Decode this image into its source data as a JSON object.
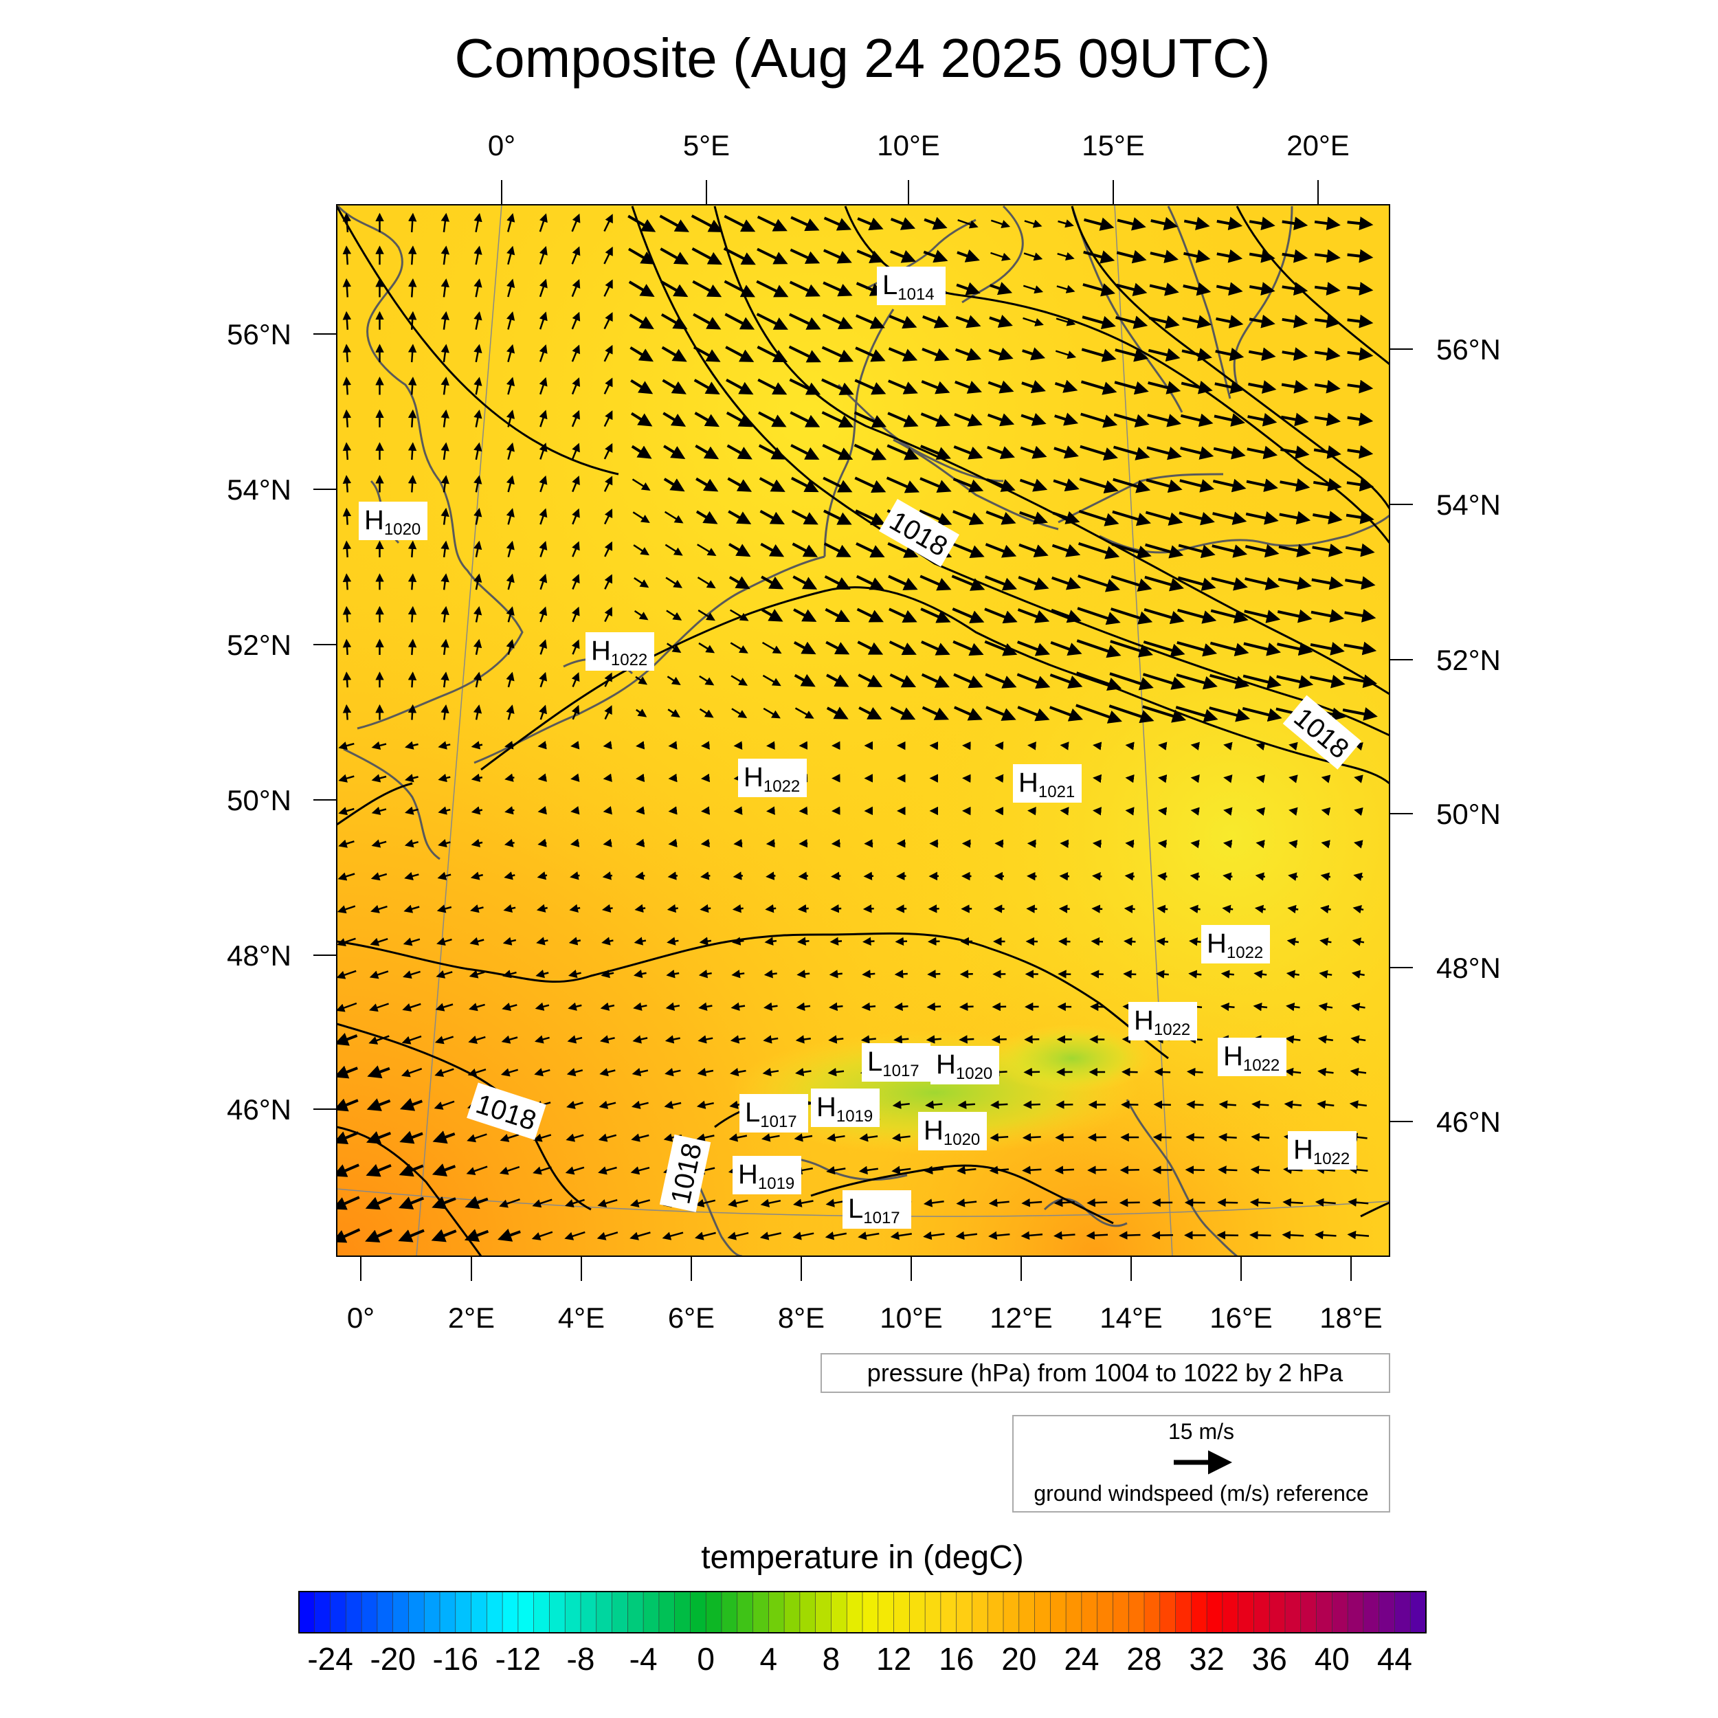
{
  "title": "Composite (Aug 24 2025 09UTC)",
  "top_lon_labels": [
    "0°",
    "5°E",
    "10°E",
    "15°E",
    "20°E"
  ],
  "bottom_lon_labels": [
    "0°",
    "2°E",
    "4°E",
    "6°E",
    "8°E",
    "10°E",
    "12°E",
    "14°E",
    "16°E",
    "18°E"
  ],
  "left_lat_labels": [
    "56°N",
    "54°N",
    "52°N",
    "50°N",
    "48°N",
    "46°N"
  ],
  "right_lat_labels": [
    "56°N",
    "54°N",
    "52°N",
    "50°N",
    "48°N",
    "46°N"
  ],
  "isobar_labels": [
    "1018",
    "1018",
    "1018",
    "1018"
  ],
  "pressure_centers": [
    {
      "letter": "L",
      "value": "1014"
    },
    {
      "letter": "H",
      "value": "1020"
    },
    {
      "letter": "H",
      "value": "1022"
    },
    {
      "letter": "H",
      "value": "1022"
    },
    {
      "letter": "H",
      "value": "1021"
    },
    {
      "letter": "H",
      "value": "1022"
    },
    {
      "letter": "H",
      "value": "1022"
    },
    {
      "letter": "H",
      "value": "1022"
    },
    {
      "letter": "L",
      "value": "1017"
    },
    {
      "letter": "H",
      "value": "1020"
    },
    {
      "letter": "L",
      "value": "1017"
    },
    {
      "letter": "H",
      "value": "1019"
    },
    {
      "letter": "H",
      "value": "1020"
    },
    {
      "letter": "H",
      "value": "1019"
    },
    {
      "letter": "L",
      "value": "1017"
    },
    {
      "letter": "H",
      "value": "1022"
    }
  ],
  "pressure_info": "pressure (hPa) from 1004 to 1022 by 2 hPa",
  "wind_reference": {
    "speed_label": "15 m/s",
    "caption": "ground windspeed (m/s) reference"
  },
  "colorbar": {
    "title": "temperature in (degC)",
    "min": -26,
    "max": 46,
    "step": 1,
    "tick_labels": [
      "-24",
      "-20",
      "-16",
      "-12",
      "-8",
      "-4",
      "0",
      "4",
      "8",
      "12",
      "16",
      "20",
      "24",
      "28",
      "32",
      "36",
      "40",
      "44"
    ]
  },
  "colors": {
    "field_base": "#ffd21e",
    "field_warm": "#ff9b14",
    "field_cool": "#ffe628",
    "isobar": "#000000",
    "coast": "#5a5a5a"
  }
}
